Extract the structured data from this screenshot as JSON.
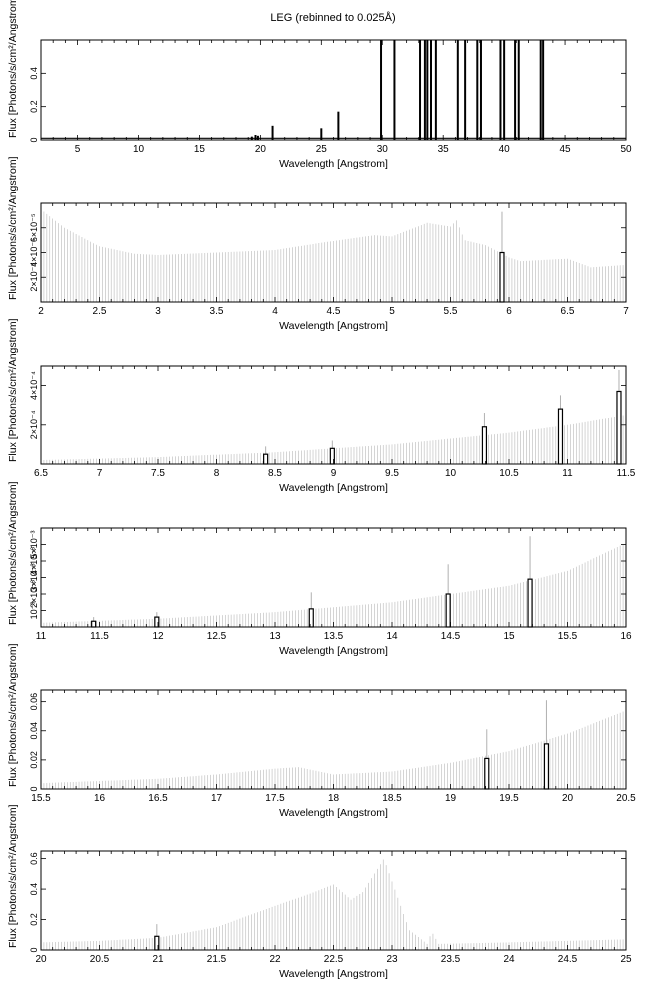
{
  "figure": {
    "title": "LEG (rebinned to 0.025Å)"
  },
  "chart_data": [
    {
      "type": "bar",
      "xlabel": "Wavelength [Angstrom]",
      "ylabel": "Flux [Photons/s/cm²/Angstrom]",
      "xlim": [
        2,
        50
      ],
      "ylim": [
        0,
        0.6
      ],
      "xticks": [
        "5",
        "10",
        "15",
        "20",
        "25",
        "30",
        "35",
        "40",
        "45",
        "50"
      ],
      "yticks": [
        "0",
        "0.2",
        "0.4"
      ],
      "ytick_values": [
        0,
        0.2,
        0.4
      ],
      "bars": [
        [
          19.3,
          0.02
        ],
        [
          19.6,
          0.03
        ],
        [
          19.8,
          0.025
        ],
        [
          21.0,
          0.085
        ],
        [
          25.0,
          0.07
        ],
        [
          26.4,
          0.17
        ],
        [
          29.9,
          0.6
        ],
        [
          31.0,
          0.6
        ],
        [
          33.1,
          0.6
        ],
        [
          33.5,
          0.6
        ],
        [
          33.7,
          0.6
        ],
        [
          34.0,
          0.6
        ],
        [
          34.4,
          0.6
        ],
        [
          36.2,
          0.6
        ],
        [
          36.8,
          0.6
        ],
        [
          37.8,
          0.6
        ],
        [
          38.1,
          0.6
        ],
        [
          39.7,
          0.6
        ],
        [
          40.0,
          0.6
        ],
        [
          40.9,
          0.6
        ],
        [
          41.2,
          0.6
        ],
        [
          43.0,
          0.6
        ],
        [
          43.2,
          0.6
        ]
      ],
      "baseline": 0.01
    },
    {
      "type": "bar",
      "xlabel": "Wavelength [Angstrom]",
      "ylabel": "Flux [Photons/s/cm²/Angstrom]",
      "xlim": [
        2,
        7
      ],
      "ylim": [
        0,
        8e-05
      ],
      "xticks": [
        "2",
        "2.5",
        "3",
        "3.5",
        "4",
        "4.5",
        "5",
        "5.5",
        "6",
        "6.5",
        "7"
      ],
      "yticks": [
        "2×10⁻⁵",
        "4×10⁻⁵",
        "6×10⁻⁵"
      ],
      "ytick_values": [
        2e-05,
        4e-05,
        6e-05
      ],
      "envelope": [
        [
          2.0,
          7.5e-05
        ],
        [
          2.2,
          6e-05
        ],
        [
          2.5,
          4.5e-05
        ],
        [
          2.8,
          3.9e-05
        ],
        [
          3.0,
          3.8e-05
        ],
        [
          3.5,
          4e-05
        ],
        [
          4.0,
          4.2e-05
        ],
        [
          4.4,
          4.8e-05
        ],
        [
          4.85,
          5.4e-05
        ],
        [
          5.0,
          5.3e-05
        ],
        [
          5.3,
          6.4e-05
        ],
        [
          5.5,
          6.1e-05
        ],
        [
          5.55,
          6.6e-05
        ],
        [
          5.62,
          5e-05
        ],
        [
          5.8,
          4.6e-05
        ],
        [
          6.0,
          3.6e-05
        ],
        [
          6.1,
          3.3e-05
        ],
        [
          6.5,
          3.5e-05
        ],
        [
          6.7,
          2.8e-05
        ],
        [
          7.0,
          3e-05
        ]
      ],
      "errorbars": [
        [
          5.94,
          7.3e-05
        ]
      ],
      "highlight": [
        [
          5.94,
          4e-05
        ]
      ]
    },
    {
      "type": "bar",
      "xlabel": "Wavelength [Angstrom]",
      "ylabel": "Flux [Photons/s/cm²/Angstrom]",
      "xlim": [
        6.5,
        11.5
      ],
      "ylim": [
        0,
        0.0005
      ],
      "xticks": [
        "6.5",
        "7",
        "7.5",
        "8",
        "8.5",
        "9",
        "9.5",
        "10",
        "10.5",
        "11",
        "11.5"
      ],
      "yticks": [
        "2×10⁻⁴",
        "4×10⁻⁴"
      ],
      "ytick_values": [
        0.0002,
        0.0004
      ],
      "envelope": [
        [
          6.5,
          2e-05
        ],
        [
          7.5,
          3.5e-05
        ],
        [
          8.5,
          6e-05
        ],
        [
          9.5,
          0.0001
        ],
        [
          10.5,
          0.00016
        ],
        [
          11.0,
          0.0002
        ],
        [
          11.5,
          0.00025
        ]
      ],
      "errorbars": [
        [
          8.42,
          9e-05
        ],
        [
          8.99,
          0.00012
        ],
        [
          10.29,
          0.00026
        ],
        [
          10.94,
          0.00035
        ],
        [
          11.44,
          0.00048
        ]
      ],
      "highlight": [
        [
          8.42,
          5e-05
        ],
        [
          8.99,
          8e-05
        ],
        [
          10.29,
          0.00019
        ],
        [
          10.94,
          0.00028
        ],
        [
          11.44,
          0.00037
        ]
      ]
    },
    {
      "type": "bar",
      "xlabel": "Wavelength [Angstrom]",
      "ylabel": "Flux [Photons/s/cm²/Angstrom]",
      "xlim": [
        11,
        16
      ],
      "ylim": [
        0,
        0.006
      ],
      "xticks": [
        "11",
        "11.5",
        "12",
        "12.5",
        "13",
        "13.5",
        "14",
        "14.5",
        "15",
        "15.5",
        "16"
      ],
      "yticks": [
        "10⁻³",
        "2×10⁻³",
        "3×10⁻³",
        "4×10⁻³",
        "5×10⁻³"
      ],
      "ytick_values": [
        0.001,
        0.002,
        0.003,
        0.004,
        0.005
      ],
      "envelope": [
        [
          11.0,
          0.00025
        ],
        [
          12.0,
          0.0005
        ],
        [
          13.0,
          0.0009
        ],
        [
          14.0,
          0.0015
        ],
        [
          15.0,
          0.0025
        ],
        [
          15.5,
          0.0034
        ],
        [
          16.0,
          0.0051
        ]
      ],
      "errorbars": [
        [
          11.45,
          0.0006
        ],
        [
          11.99,
          0.0009
        ],
        [
          13.31,
          0.0021
        ],
        [
          14.48,
          0.0038
        ],
        [
          15.18,
          0.0055
        ]
      ],
      "highlight": [
        [
          11.45,
          0.00035
        ],
        [
          11.99,
          0.0006
        ],
        [
          13.31,
          0.0011
        ],
        [
          14.48,
          0.002
        ],
        [
          15.18,
          0.0029
        ]
      ]
    },
    {
      "type": "bar",
      "xlabel": "Wavelength [Angstrom]",
      "ylabel": "Flux [Photons/s/cm²/Angstrom]",
      "xlim": [
        15.5,
        20.5
      ],
      "ylim": [
        0,
        0.068
      ],
      "xticks": [
        "15.5",
        "16",
        "16.5",
        "17",
        "17.5",
        "18",
        "18.5",
        "19",
        "19.5",
        "20",
        "20.5"
      ],
      "yticks": [
        "0",
        "0.02",
        "0.04",
        "0.06"
      ],
      "ytick_values": [
        0,
        0.02,
        0.04,
        0.06
      ],
      "envelope": [
        [
          15.5,
          0.004
        ],
        [
          16.5,
          0.007
        ],
        [
          17.0,
          0.01
        ],
        [
          17.5,
          0.014
        ],
        [
          17.7,
          0.015
        ],
        [
          18.0,
          0.01
        ],
        [
          18.5,
          0.012
        ],
        [
          19.0,
          0.018
        ],
        [
          19.5,
          0.026
        ],
        [
          20.0,
          0.038
        ],
        [
          20.5,
          0.054
        ]
      ],
      "errorbars": [
        [
          19.31,
          0.041
        ],
        [
          19.82,
          0.061
        ]
      ],
      "highlight": [
        [
          19.31,
          0.021
        ],
        [
          19.82,
          0.031
        ]
      ]
    },
    {
      "type": "bar",
      "xlabel": "Wavelength [Angstrom]",
      "ylabel": "Flux [Photons/s/cm²/Angstrom]",
      "xlim": [
        20,
        25
      ],
      "ylim": [
        0,
        0.65
      ],
      "xticks": [
        "20",
        "20.5",
        "21",
        "21.5",
        "22",
        "22.5",
        "23",
        "23.5",
        "24",
        "24.5",
        "25"
      ],
      "yticks": [
        "0",
        "0.2",
        "0.4",
        "0.6"
      ],
      "ytick_values": [
        0,
        0.2,
        0.4,
        0.6
      ],
      "envelope": [
        [
          20.0,
          0.05
        ],
        [
          20.5,
          0.06
        ],
        [
          21.0,
          0.08
        ],
        [
          21.5,
          0.15
        ],
        [
          22.0,
          0.29
        ],
        [
          22.3,
          0.37
        ],
        [
          22.5,
          0.43
        ],
        [
          22.65,
          0.33
        ],
        [
          22.75,
          0.38
        ],
        [
          22.93,
          0.6
        ],
        [
          23.0,
          0.45
        ],
        [
          23.15,
          0.13
        ],
        [
          23.3,
          0.04
        ],
        [
          23.34,
          0.12
        ],
        [
          23.4,
          0.04
        ],
        [
          24.0,
          0.05
        ],
        [
          25.0,
          0.07
        ]
      ],
      "errorbars": [
        [
          20.99,
          0.17
        ]
      ],
      "highlight": [
        [
          20.99,
          0.09
        ]
      ]
    }
  ]
}
